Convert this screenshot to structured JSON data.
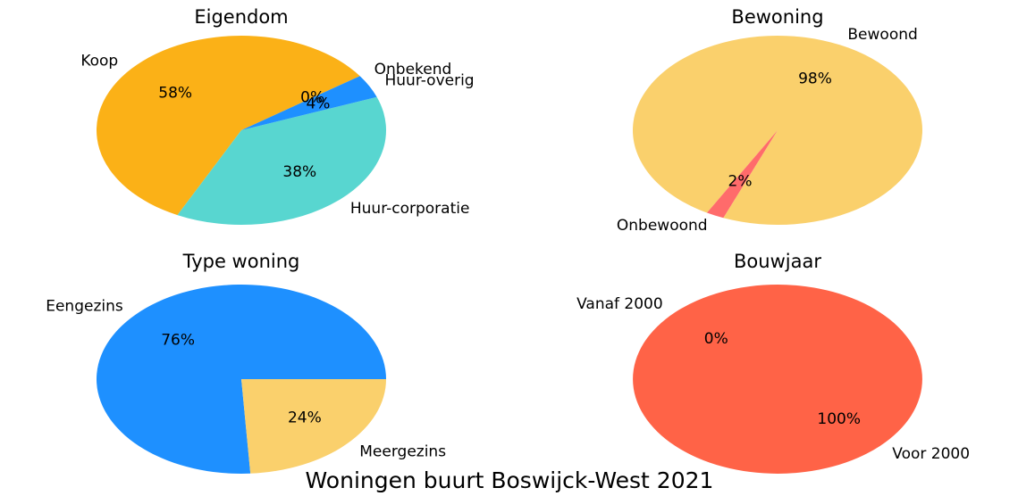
{
  "title": "Woningen buurt Boswijck-West 2021",
  "chart_data": [
    {
      "type": "pie",
      "title": "Eigendom",
      "categories": [
        "Koop",
        "Huur-corporatie",
        "Huur-overig",
        "Onbekend"
      ],
      "values": [
        58,
        38,
        4,
        0
      ],
      "value_labels": [
        "58%",
        "38%",
        "4%",
        "0%"
      ],
      "colors": [
        "#fbb117",
        "#58d6d0",
        "#1e90ff",
        "#8a2be2"
      ]
    },
    {
      "type": "pie",
      "title": "Bewoning",
      "categories": [
        "Bewoond",
        "Onbewoond"
      ],
      "values": [
        98,
        2
      ],
      "value_labels": [
        "98%",
        "2%"
      ],
      "colors": [
        "#fad06c",
        "#ff6b6b"
      ]
    },
    {
      "type": "pie",
      "title": "Type woning",
      "categories": [
        "Eengezins",
        "Meergezins"
      ],
      "values": [
        76,
        24
      ],
      "value_labels": [
        "76%",
        "24%"
      ],
      "colors": [
        "#1e90ff",
        "#fad06c"
      ]
    },
    {
      "type": "pie",
      "title": "Bouwjaar",
      "categories": [
        "Vanaf 2000",
        "Voor 2000"
      ],
      "values": [
        0,
        100
      ],
      "value_labels": [
        "0%",
        "100%"
      ],
      "colors": [
        "#1e90ff",
        "#ff6347"
      ]
    }
  ]
}
